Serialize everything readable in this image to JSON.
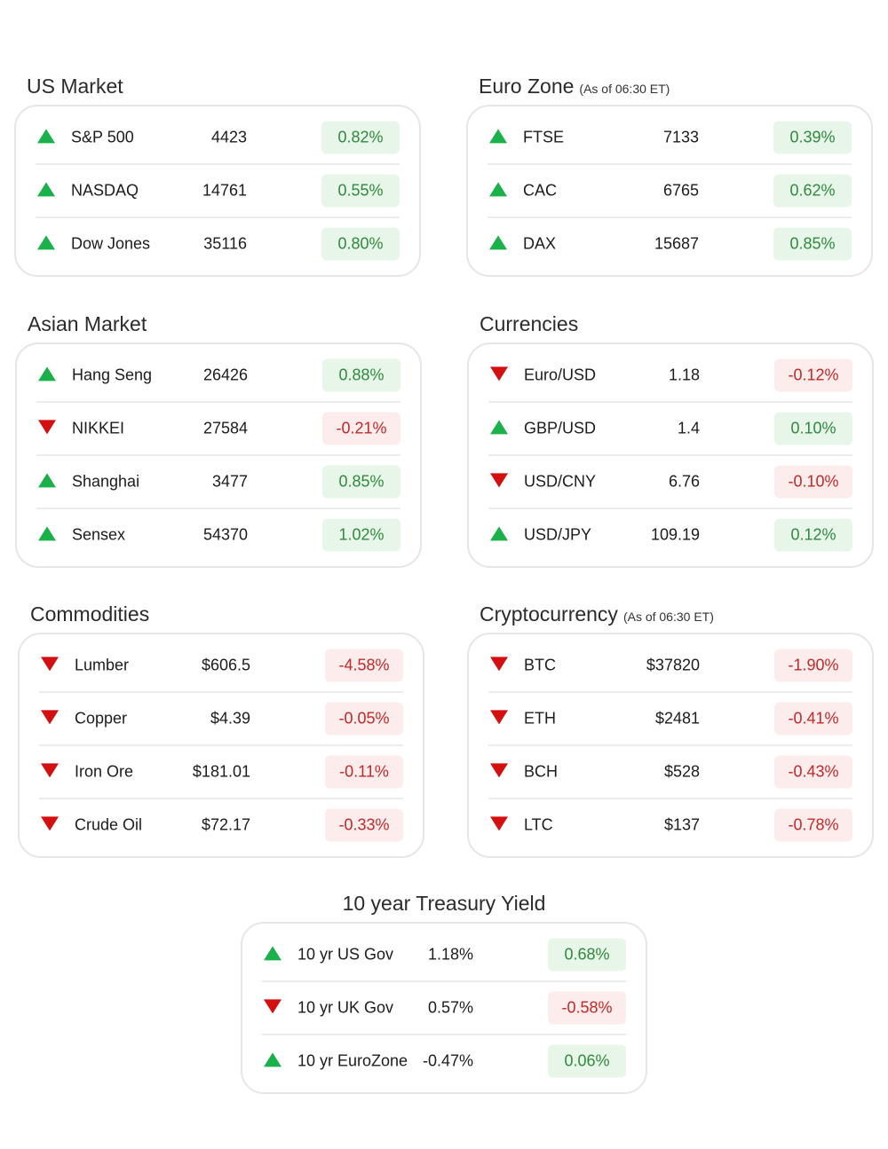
{
  "sections": {
    "us": {
      "title": "US Market",
      "note": "",
      "rows": [
        {
          "name": "S&P 500",
          "value": "4423",
          "change": "0.82%",
          "dir": "up"
        },
        {
          "name": "NASDAQ",
          "value": "14761",
          "change": "0.55%",
          "dir": "up"
        },
        {
          "name": "Dow Jones",
          "value": "35116",
          "change": "0.80%",
          "dir": "up"
        }
      ]
    },
    "euro": {
      "title": "Euro Zone",
      "note": "(As of 06:30 ET)",
      "rows": [
        {
          "name": "FTSE",
          "value": "7133",
          "change": "0.39%",
          "dir": "up"
        },
        {
          "name": "CAC",
          "value": "6765",
          "change": "0.62%",
          "dir": "up"
        },
        {
          "name": "DAX",
          "value": "15687",
          "change": "0.85%",
          "dir": "up"
        }
      ]
    },
    "asia": {
      "title": "Asian Market",
      "note": "",
      "rows": [
        {
          "name": "Hang Seng",
          "value": "26426",
          "change": "0.88%",
          "dir": "up"
        },
        {
          "name": "NIKKEI",
          "value": "27584",
          "change": "-0.21%",
          "dir": "down"
        },
        {
          "name": "Shanghai",
          "value": "3477",
          "change": "0.85%",
          "dir": "up"
        },
        {
          "name": "Sensex",
          "value": "54370",
          "change": "1.02%",
          "dir": "up"
        }
      ]
    },
    "currencies": {
      "title": "Currencies",
      "note": "",
      "rows": [
        {
          "name": "Euro/USD",
          "value": "1.18",
          "change": "-0.12%",
          "dir": "down"
        },
        {
          "name": "GBP/USD",
          "value": "1.4",
          "change": "0.10%",
          "dir": "up"
        },
        {
          "name": "USD/CNY",
          "value": "6.76",
          "change": "-0.10%",
          "dir": "down"
        },
        {
          "name": "USD/JPY",
          "value": "109.19",
          "change": "0.12%",
          "dir": "up"
        }
      ]
    },
    "commodities": {
      "title": "Commodities",
      "note": "",
      "rows": [
        {
          "name": "Lumber",
          "value": "$606.5",
          "change": "-4.58%",
          "dir": "down"
        },
        {
          "name": "Copper",
          "value": "$4.39",
          "change": "-0.05%",
          "dir": "down"
        },
        {
          "name": "Iron Ore",
          "value": "$181.01",
          "change": "-0.11%",
          "dir": "down"
        },
        {
          "name": "Crude Oil",
          "value": "$72.17",
          "change": "-0.33%",
          "dir": "down"
        }
      ]
    },
    "crypto": {
      "title": "Cryptocurrency",
      "note": "(As of 06:30 ET)",
      "rows": [
        {
          "name": "BTC",
          "value": "$37820",
          "change": "-1.90%",
          "dir": "down"
        },
        {
          "name": "ETH",
          "value": "$2481",
          "change": "-0.41%",
          "dir": "down"
        },
        {
          "name": "BCH",
          "value": "$528",
          "change": "-0.43%",
          "dir": "down"
        },
        {
          "name": "LTC",
          "value": "$137",
          "change": "-0.78%",
          "dir": "down"
        }
      ]
    },
    "treasury": {
      "title": "10 year Treasury Yield",
      "note": "",
      "rows": [
        {
          "name": "10 yr US Gov",
          "value": "1.18%",
          "change": "0.68%",
          "dir": "up"
        },
        {
          "name": "10 yr UK Gov",
          "value": "0.57%",
          "change": "-0.58%",
          "dir": "down"
        },
        {
          "name": "10 yr EuroZone",
          "value": "-0.47%",
          "change": "0.06%",
          "dir": "up"
        }
      ]
    }
  },
  "colors": {
    "up_arrow": "#1ab04a",
    "down_arrow": "#d40f10",
    "up_badge_bg": "#e8f5e9",
    "up_badge_text": "#2e8b3e",
    "down_badge_bg": "#fdecec",
    "down_badge_text": "#c62828"
  }
}
